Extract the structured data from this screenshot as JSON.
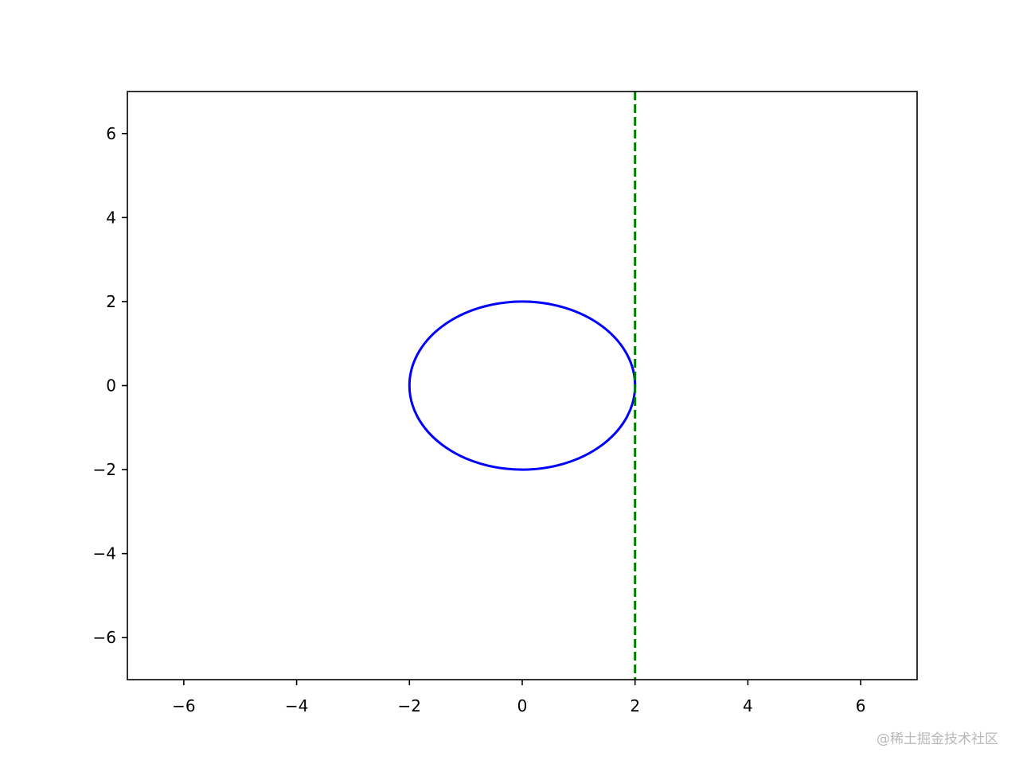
{
  "chart_data": {
    "type": "line",
    "title": "",
    "xlabel": "",
    "ylabel": "",
    "xlim": [
      -7,
      7
    ],
    "ylim": [
      -7,
      7
    ],
    "grid": false,
    "x_ticks": [
      -6,
      -4,
      -2,
      0,
      2,
      4,
      6
    ],
    "y_ticks": [
      -6,
      -4,
      -2,
      0,
      2,
      4,
      6
    ],
    "x_tick_labels": [
      "−6",
      "−4",
      "−2",
      "0",
      "2",
      "4",
      "6"
    ],
    "y_tick_labels": [
      "−6",
      "−4",
      "−2",
      "0",
      "2",
      "4",
      "6"
    ],
    "series": [
      {
        "kind": "circle",
        "center": [
          0,
          0
        ],
        "radius": 2,
        "color": "#0000ff",
        "linestyle": "solid"
      },
      {
        "kind": "vertical-line",
        "x": 2,
        "color": "#008000",
        "linestyle": "dashed"
      }
    ]
  },
  "watermark": "@稀土掘金技术社区"
}
